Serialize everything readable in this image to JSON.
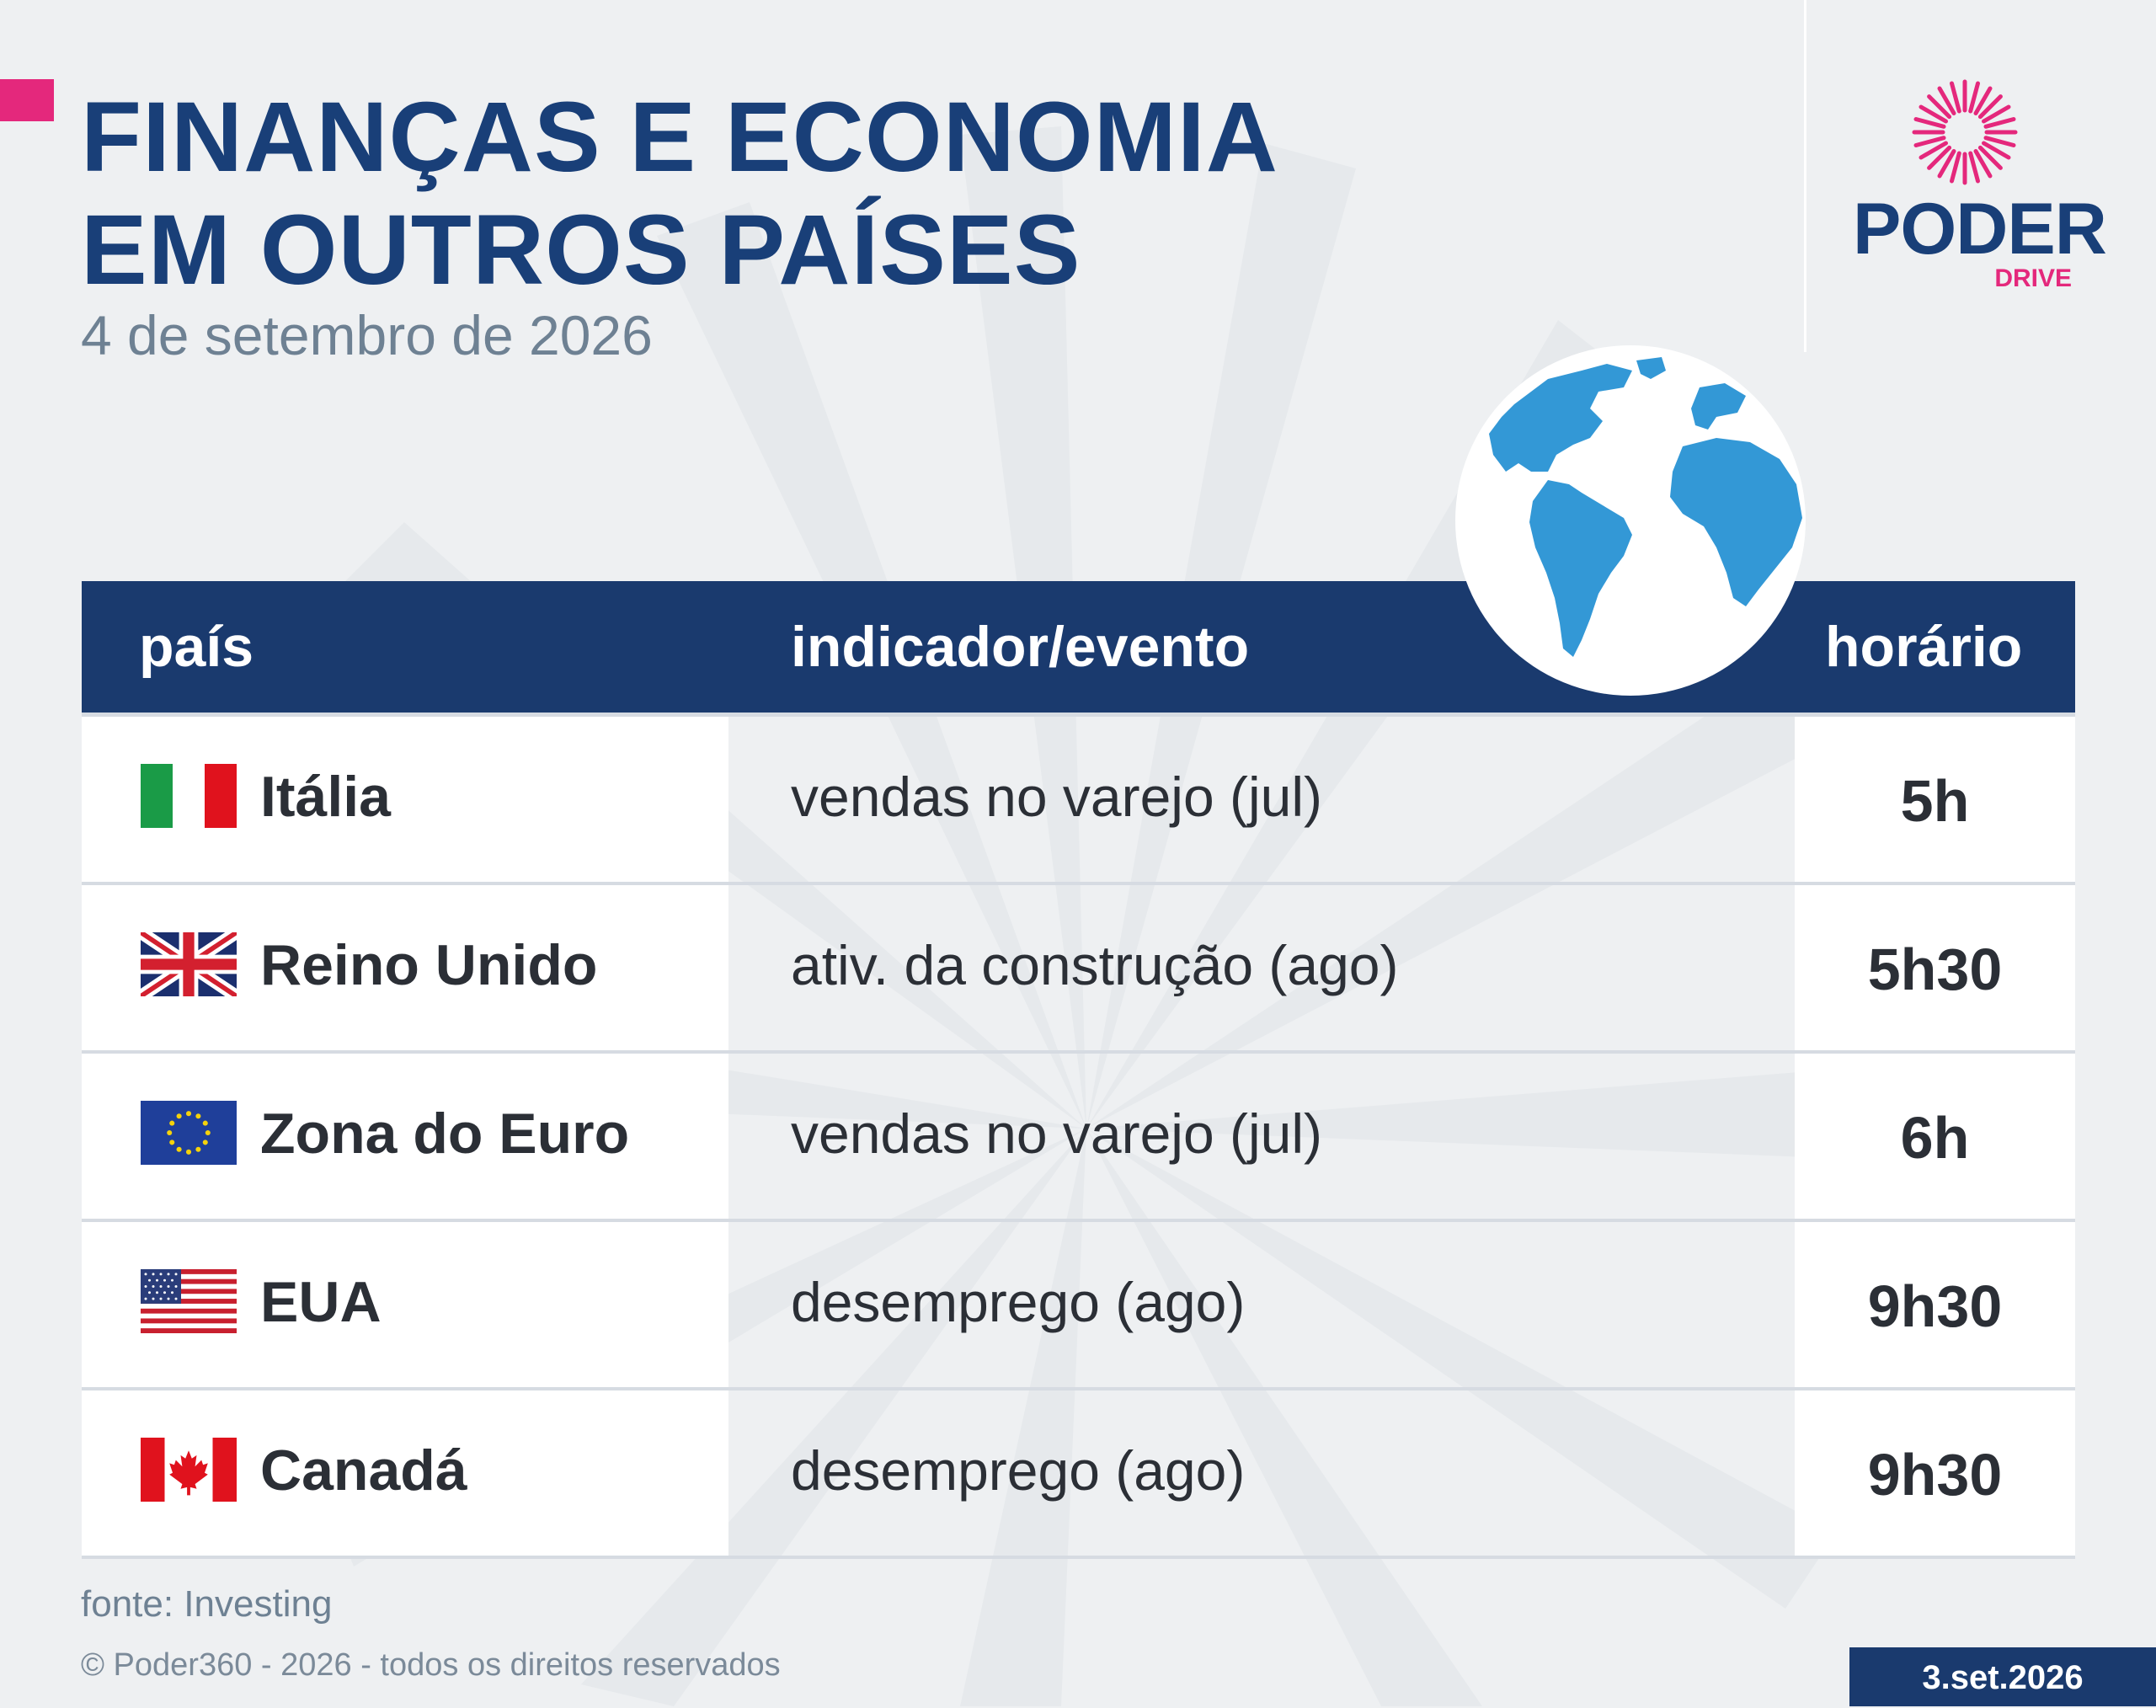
{
  "header": {
    "title_line1": "FINANÇAS E ECONOMIA",
    "title_line2": "EM OUTROS PAÍSES",
    "subtitle": "4 de setembro de 2026"
  },
  "logo": {
    "word": "PODER",
    "sub": "DRIVE"
  },
  "colors": {
    "navy": "#1a3a6e",
    "title_blue": "#193f78",
    "magenta": "#e4287c",
    "globe_blue": "#3398d6"
  },
  "table": {
    "headers": {
      "country": "país",
      "event": "indicador/evento",
      "time": "horário"
    },
    "rows": [
      {
        "flag": "italy-flag-icon",
        "country": "Itália",
        "event": "vendas no varejo (jul)",
        "time": "5h"
      },
      {
        "flag": "uk-flag-icon",
        "country": "Reino Unido",
        "event": "ativ. da construção (ago)",
        "time": "5h30"
      },
      {
        "flag": "eu-flag-icon",
        "country": "Zona do Euro",
        "event": "vendas no varejo (jul)",
        "time": "6h"
      },
      {
        "flag": "usa-flag-icon",
        "country": "EUA",
        "event": "desemprego (ago)",
        "time": "9h30"
      },
      {
        "flag": "canada-flag-icon",
        "country": "Canadá",
        "event": "desemprego (ago)",
        "time": "9h30"
      }
    ]
  },
  "footer": {
    "source": "fonte: Investing",
    "copyright": "© Poder360 - 2026 - todos os direitos reservados",
    "date_badge": "3.set.2026"
  }
}
